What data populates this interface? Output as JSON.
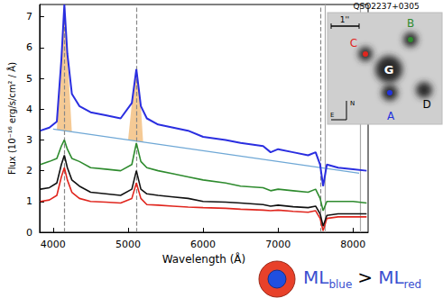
{
  "chart_data": {
    "type": "line",
    "x_label": "Wavelength (Å)",
    "y_label": "Flux (10⁻¹⁶ erg/s/cm² / Å)",
    "xlim": [
      3820,
      8200
    ],
    "xticks": [
      4000,
      5000,
      6000,
      7000,
      8000
    ],
    "ylim": [
      0,
      7.4
    ],
    "yticks": [
      0,
      1,
      2,
      3,
      4,
      5,
      6,
      7
    ],
    "grid": false,
    "x": [
      3830,
      3950,
      4050,
      4110,
      4150,
      4190,
      4250,
      4350,
      4500,
      4700,
      4900,
      5050,
      5110,
      5170,
      5250,
      5400,
      5600,
      5800,
      6000,
      6300,
      6500,
      6800,
      6900,
      7000,
      7200,
      7400,
      7500,
      7560,
      7600,
      7650,
      7800,
      8000,
      8180
    ],
    "series": [
      {
        "color": "#2a2ee0",
        "values": [
          3.3,
          3.4,
          3.6,
          5.6,
          7.4,
          5.8,
          4.5,
          4.1,
          3.9,
          3.8,
          3.7,
          4.2,
          5.3,
          4.1,
          3.7,
          3.5,
          3.4,
          3.3,
          3.1,
          3.0,
          2.9,
          2.8,
          2.6,
          2.7,
          2.6,
          2.5,
          2.6,
          2.2,
          1.5,
          2.2,
          2.1,
          2.05,
          2.0
        ]
      },
      {
        "color": "#2e8b2e",
        "values": [
          2.2,
          2.3,
          2.4,
          2.8,
          3.0,
          2.7,
          2.4,
          2.3,
          2.1,
          2.05,
          2.0,
          2.2,
          2.9,
          2.3,
          2.1,
          2.0,
          1.9,
          1.8,
          1.7,
          1.6,
          1.5,
          1.45,
          1.35,
          1.4,
          1.35,
          1.3,
          1.4,
          1.1,
          0.7,
          1.0,
          1.0,
          1.0,
          0.95
        ]
      },
      {
        "color": "#111111",
        "values": [
          1.4,
          1.45,
          1.6,
          2.2,
          2.5,
          2.1,
          1.7,
          1.5,
          1.3,
          1.25,
          1.2,
          1.4,
          2.0,
          1.4,
          1.25,
          1.2,
          1.15,
          1.1,
          1.0,
          0.98,
          0.95,
          0.9,
          0.85,
          0.88,
          0.83,
          0.8,
          0.85,
          0.6,
          0.2,
          0.55,
          0.6,
          0.6,
          0.6
        ]
      },
      {
        "color": "#e0261e",
        "values": [
          1.0,
          1.05,
          1.2,
          1.8,
          2.1,
          1.7,
          1.3,
          1.1,
          1.0,
          0.98,
          0.95,
          1.1,
          1.6,
          1.1,
          0.9,
          0.88,
          0.85,
          0.82,
          0.8,
          0.78,
          0.75,
          0.72,
          0.7,
          0.72,
          0.68,
          0.65,
          0.7,
          0.45,
          0.05,
          0.45,
          0.5,
          0.5,
          0.5
        ]
      }
    ],
    "continuum": {
      "x": [
        4000,
        8080
      ],
      "values": [
        3.35,
        1.92
      ],
      "color": "#6fa8d6"
    },
    "shaded_ranges": {
      "ranges": [
        [
          4050,
          4250
        ],
        [
          5000,
          5200
        ]
      ],
      "color": "#f2b872"
    },
    "vlines": [
      {
        "x": 4150,
        "line_style": "dashed",
        "color": "#888888"
      },
      {
        "x": 5110,
        "line_style": "dashed",
        "color": "#888888"
      },
      {
        "x": 7560,
        "line_style": "dashed",
        "color": "#888888"
      },
      {
        "x": 7620,
        "line_style": "solid",
        "color": "#aaaaaa"
      },
      {
        "x": 8100,
        "line_style": "solid",
        "color": "#aaaaaa"
      }
    ],
    "inset": {
      "title": "QSO2237+0305",
      "scale": "1''",
      "images": [
        {
          "text": "A",
          "color": "#2233dd"
        },
        {
          "text": "B",
          "color": "#2e8b2e"
        },
        {
          "text": "C",
          "color": "#e0261e"
        },
        {
          "text": "D",
          "color": "#000000"
        },
        {
          "text": "G",
          "color": "#000000"
        }
      ],
      "compass": [
        "N",
        "E"
      ]
    },
    "annotation": {
      "terms": [
        {
          "text": "ML",
          "sub": "blue",
          "color": "#3a4fd0"
        },
        {
          "text": "ML",
          "sub": "red",
          "color": "#3a4fd0"
        }
      ],
      "relation": ">",
      "disk_colors": {
        "outer": "#e8412a",
        "inner": "#1f4fe0"
      }
    }
  }
}
